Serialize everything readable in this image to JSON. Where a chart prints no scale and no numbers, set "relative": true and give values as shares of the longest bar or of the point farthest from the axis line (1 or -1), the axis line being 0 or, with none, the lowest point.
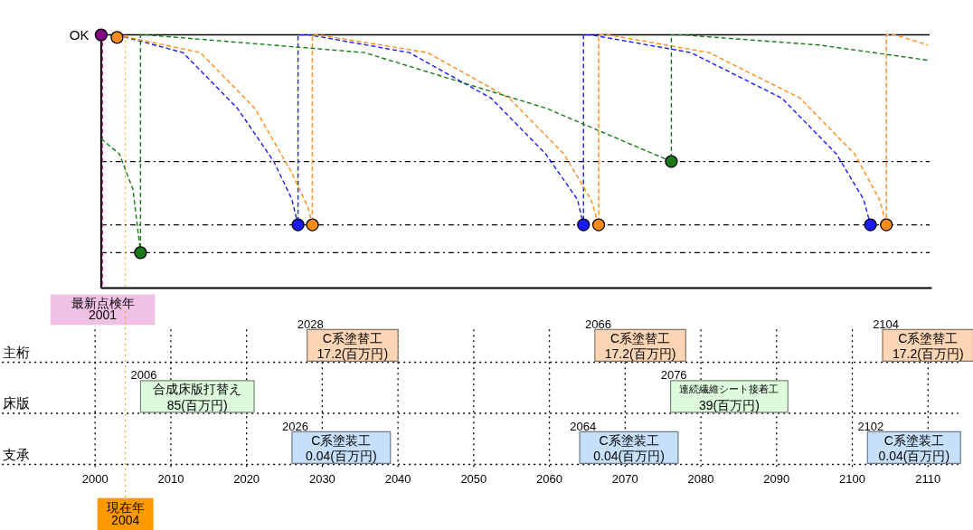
{
  "chart_data": [
    {
      "type": "line",
      "relative": true,
      "tick_labels": false,
      "line_style": "dashed",
      "marker": "none",
      "xlim": [
        2000.8,
        2110.2
      ],
      "xticks": [
        2010,
        2020,
        2030,
        2040,
        2050,
        2060,
        2070,
        2080,
        2090,
        2100,
        2110
      ],
      "series": [
        {
          "color": "#1a1aff",
          "x": [
            2002.9,
            2011.6,
            2018.8,
            2023.6,
            2026,
            2026.8,
            2026.8,
            2028.3,
            2041.5,
            2052.3,
            2059.5,
            2063.7,
            2064.5,
            2064.5,
            2065.5,
            2078.7,
            2090.7,
            2097.9,
            2101.5,
            2102.4
          ],
          "values": [
            1,
            0.93,
            0.71,
            0.5,
            0.35,
            0.25,
            1,
            1,
            0.93,
            0.75,
            0.53,
            0.35,
            0.25,
            1,
            1,
            0.93,
            0.75,
            0.53,
            0.35,
            0.25
          ]
        },
        {
          "color": "#ff8c1a",
          "x": [
            2002.9,
            2013.9,
            2021.1,
            2025.9,
            2028.1,
            2028.7,
            2028.7,
            2029.5,
            2043.9,
            2054.7,
            2061.9,
            2065.5,
            2066.5,
            2066.5,
            2067.8,
            2081.1,
            2093.1,
            2100.3,
            2103.6,
            2104.5,
            2104.5,
            2105.7,
            2110
          ],
          "values": [
            1,
            0.93,
            0.71,
            0.46,
            0.32,
            0.25,
            1,
            1,
            0.93,
            0.75,
            0.53,
            0.35,
            0.25,
            1,
            1,
            0.93,
            0.75,
            0.53,
            0.35,
            0.25,
            1,
            1,
            0.96
          ]
        },
        {
          "color": "#1a7a1a",
          "x": [
            2000.8,
            2003.2,
            2005,
            2006,
            2006,
            2006.8,
            2035.6,
            2059.6,
            2076.1,
            2076.1,
            2077.6,
            2095.6,
            2110
          ],
          "values": [
            0.59,
            0.53,
            0.39,
            0.14,
            1,
            1,
            0.93,
            0.71,
            0.5,
            1,
            1,
            0.96,
            0.9
          ]
        },
        {
          "type": "scatter",
          "marker": "circle",
          "color": "#1a1aff",
          "x": [
            2026.8,
            2064.5,
            2102.4
          ],
          "values": [
            0.25,
            0.25,
            0.25
          ]
        },
        {
          "type": "scatter",
          "marker": "circle",
          "color": "#ff8c1a",
          "x": [
            2002.9,
            2028.7,
            2066.5,
            2104.5
          ],
          "values": [
            0.99,
            0.25,
            0.25,
            0.25
          ]
        },
        {
          "type": "scatter",
          "marker": "circle",
          "color": "#1a7a1a",
          "x": [
            2006,
            2076.1
          ],
          "values": [
            0.14,
            0.5
          ]
        },
        {
          "type": "scatter",
          "marker": "circle",
          "color": "#800080",
          "x": [
            2000.8
          ],
          "values": [
            1
          ]
        }
      ],
      "ref_lines": [
        {
          "axis": "y",
          "value": 1,
          "label": "OK",
          "color": "#000000",
          "line_style": "solid"
        },
        {
          "axis": "y",
          "value": 0.5,
          "color": "#000000",
          "line_style": "dashdot"
        },
        {
          "axis": "y",
          "value": 0.25,
          "color": "#000000",
          "line_style": "dashdot"
        },
        {
          "axis": "y",
          "value": 0.14,
          "color": "#000000",
          "line_style": "dashdot"
        },
        {
          "axis": "x",
          "value": 2001,
          "label": "最新点検年 2001",
          "color": "#cc33aa",
          "line_style": "dashed"
        },
        {
          "axis": "x",
          "value": 2004,
          "color": "#ff9900",
          "line_style": "dotted"
        }
      ]
    },
    {
      "type": "bar",
      "orientation": "horizontal",
      "categories": [
        "主桁",
        "床版",
        "支承"
      ],
      "xlim": [
        1987.5,
        2116
      ],
      "xticks": [
        2000,
        2010,
        2020,
        2030,
        2040,
        2050,
        2060,
        2070,
        2080,
        2090,
        2100,
        2110
      ],
      "grid": true,
      "series": [
        {
          "base": [
            2028,
            2006,
            2026
          ],
          "values": [
            12,
            15,
            13
          ],
          "colors": [
            "#fcd5b4",
            "#ddfadd",
            "#c6e0fb"
          ],
          "value_labels": [
            "C系塗替工\n17.2(百万円)",
            "合成床版打替え\n85(百万円)",
            "C系塗装工\n0.04(百万円)"
          ]
        },
        {
          "base": [
            2066,
            2076,
            2064
          ],
          "values": [
            12,
            15.5,
            13
          ],
          "colors": [
            "#fcd5b4",
            "#ddfadd",
            "#c6e0fb"
          ],
          "value_labels": [
            "C系塗替工\n17.2(百万円)",
            "連続繊維シート接着工\n39(百万円)",
            "C系塗装工\n0.04(百万円)"
          ]
        },
        {
          "base": [
            2104,
            null,
            2102
          ],
          "values": [
            12,
            null,
            12.3
          ],
          "colors": [
            "#fcd5b4",
            "#ddfadd",
            "#c6e0fb"
          ],
          "value_labels": [
            "C系塗替工\n17.2(百万円)",
            null,
            "C系塗装工\n0.04(百万円)"
          ]
        }
      ],
      "annotations": [
        {
          "text": "2028",
          "x": 2028,
          "y": "主桁"
        },
        {
          "text": "2066",
          "x": 2066,
          "y": "主桁"
        },
        {
          "text": "2104",
          "x": 2104,
          "y": "主桁"
        },
        {
          "text": "2006",
          "x": 2006,
          "y": "床版"
        },
        {
          "text": "2076",
          "x": 2076,
          "y": "床版"
        },
        {
          "text": "2026",
          "x": 2026,
          "y": "支承"
        },
        {
          "text": "2064",
          "x": 2064,
          "y": "支承"
        },
        {
          "text": "2102",
          "x": 2102,
          "y": "支承"
        }
      ],
      "ref_lines": [
        {
          "axis": "x",
          "value": 2004,
          "label": "現在年 2004",
          "color": "#ff9900",
          "line_style": "dotted"
        }
      ]
    }
  ]
}
